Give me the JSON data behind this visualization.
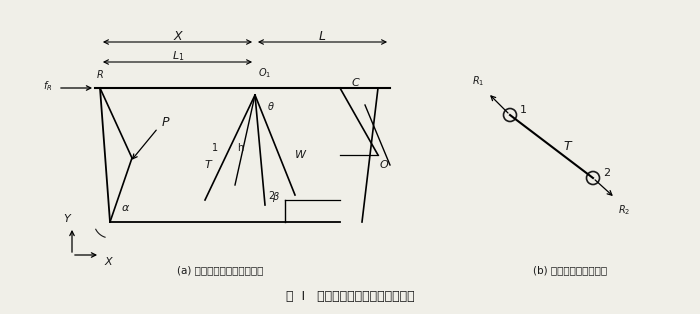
{
  "title": "图  Ⅰ   正常工位时液压支架受力分析",
  "subtitle_a": "(a) 支撑掩护式支架受力分析",
  "subtitle_b": "(b) 平衡千斤顶受力分析",
  "bg_color": "#f0efe8",
  "line_color": "#1a1a1a",
  "text_color": "#1a1a1a"
}
